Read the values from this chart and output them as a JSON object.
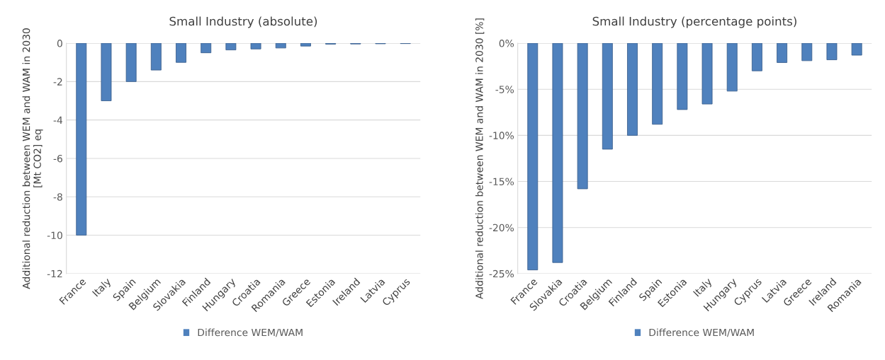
{
  "chart_data": [
    {
      "type": "bar",
      "title": "Small Industry (absolute)",
      "ylabel": "Additional reduction between WEM and WAM in 2030\n[Mt CO2] eq",
      "categories": [
        "France",
        "Italy",
        "Spain",
        "Belgium",
        "Slovakia",
        "Finland",
        "Hungary",
        "Croatia",
        "Romania",
        "Greece",
        "Estonia",
        "Ireland",
        "Latvia",
        "Cyprus"
      ],
      "series": [
        {
          "name": "Difference WEM/WAM",
          "color": "#4f81bd",
          "values": [
            -10.0,
            -3.0,
            -2.0,
            -1.4,
            -1.0,
            -0.5,
            -0.35,
            -0.3,
            -0.25,
            -0.15,
            -0.05,
            -0.04,
            -0.03,
            -0.02
          ]
        }
      ],
      "ylim": [
        -12,
        0
      ],
      "yticks": [
        -12,
        -10,
        -8,
        -6,
        -4,
        -2,
        0
      ],
      "grid": "y",
      "legend": "bottom"
    },
    {
      "type": "bar",
      "title": "Small Industry (percentage points)",
      "ylabel": "Additional reduction between WEM and WAM in 2030 [%]",
      "categories": [
        "France",
        "Slovakia",
        "Croatia",
        "Belgium",
        "Finland",
        "Spain",
        "Estonia",
        "Italy",
        "Hungary",
        "Cyprus",
        "Latvia",
        "Greece",
        "Ireland",
        "Romania"
      ],
      "series": [
        {
          "name": "Difference WEM/WAM",
          "color": "#4f81bd",
          "values": [
            -24.6,
            -23.8,
            -15.8,
            -11.5,
            -10.0,
            -8.8,
            -7.2,
            -6.6,
            -5.2,
            -3.0,
            -2.1,
            -1.9,
            -1.8,
            -1.3
          ]
        }
      ],
      "ylim": [
        -25,
        0
      ],
      "yticks": [
        {
          "value": -25,
          "label": "-25%"
        },
        {
          "value": -20,
          "label": "-20%"
        },
        {
          "value": -15,
          "label": "-15%"
        },
        {
          "value": -10,
          "label": "-10%"
        },
        {
          "value": -5,
          "label": "-5%"
        },
        {
          "value": 0,
          "label": "0%"
        }
      ],
      "grid": "y",
      "legend": "bottom"
    }
  ]
}
